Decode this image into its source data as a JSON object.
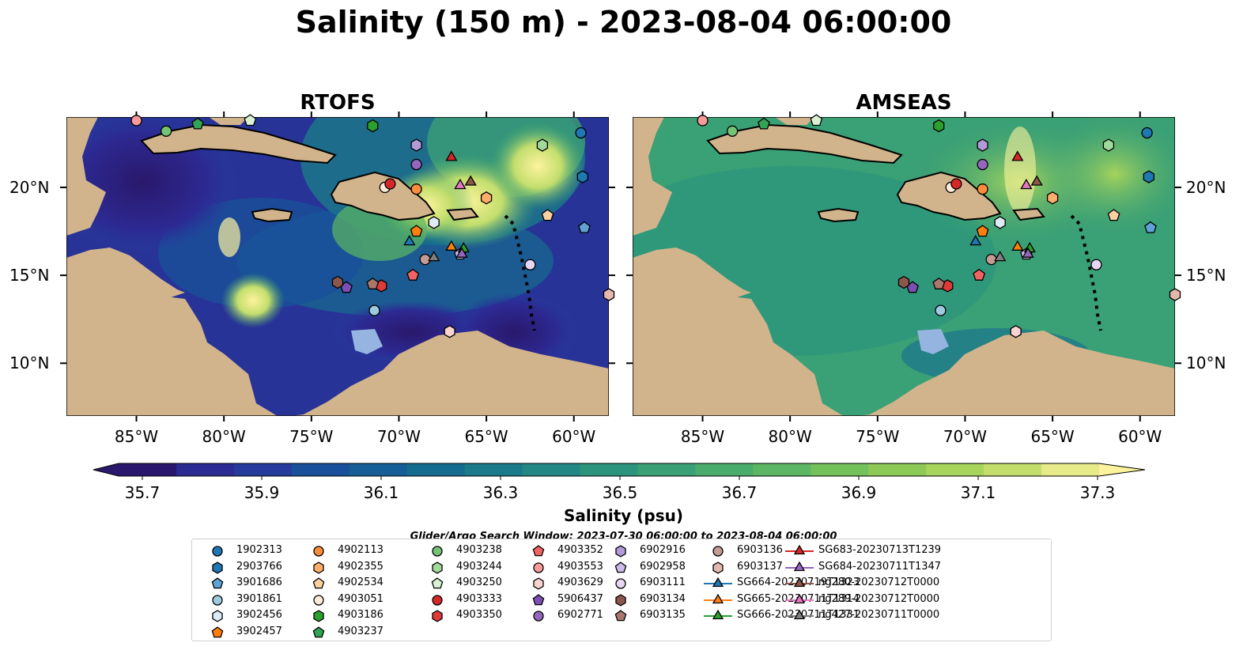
{
  "title": "Salinity (150 m) - 2023-08-04 06:00:00",
  "panels": [
    {
      "name": "RTOFS"
    },
    {
      "name": "AMSEAS"
    }
  ],
  "axes": {
    "x_ticks": [
      "85°W",
      "80°W",
      "75°W",
      "70°W",
      "65°W",
      "60°W"
    ],
    "y_ticks": [
      "20°N",
      "15°N",
      "10°N"
    ]
  },
  "colorbar": {
    "label": "Salinity (psu)",
    "ticks": [
      "35.7",
      "35.9",
      "36.1",
      "36.3",
      "36.5",
      "36.7",
      "36.9",
      "37.1",
      "37.3"
    ],
    "colors": [
      "#2a186c",
      "#2c2a93",
      "#243b9b",
      "#19509a",
      "#165e95",
      "#166c8f",
      "#1b7a89",
      "#238783",
      "#2c947c",
      "#3aa075",
      "#4aac6c",
      "#5db663",
      "#74c05b",
      "#8dc956",
      "#a6d45c",
      "#c3de6d",
      "#e6ea88"
    ],
    "over_color": "#fdf39d"
  },
  "search_window": "Glider/Argo Search Window: 2023-07-30 06:00:00 to 2023-08-04 06:00:00",
  "legend": {
    "items": [
      {
        "label": "1902313",
        "marker": "circle",
        "color": "#1f77b4"
      },
      {
        "label": "2903766",
        "marker": "hexagon",
        "color": "#1f77b4"
      },
      {
        "label": "3901686",
        "marker": "pentagon",
        "color": "#5fa2d5"
      },
      {
        "label": "3901861",
        "marker": "circle",
        "color": "#9ecae1"
      },
      {
        "label": "3902456",
        "marker": "hexagon",
        "color": "#deebf7"
      },
      {
        "label": "3902457",
        "marker": "pentagon",
        "color": "#ff7f0e"
      },
      {
        "label": "4902113",
        "marker": "circle",
        "color": "#fd8d3c"
      },
      {
        "label": "4902355",
        "marker": "hexagon",
        "color": "#fdae6b"
      },
      {
        "label": "4902534",
        "marker": "pentagon",
        "color": "#fdd0a2"
      },
      {
        "label": "4903051",
        "marker": "circle",
        "color": "#feecd8"
      },
      {
        "label": "4903186",
        "marker": "hexagon",
        "color": "#2ca02c"
      },
      {
        "label": "4903237",
        "marker": "pentagon",
        "color": "#31a354"
      },
      {
        "label": "4903238",
        "marker": "circle",
        "color": "#74c476"
      },
      {
        "label": "4903244",
        "marker": "hexagon",
        "color": "#a1d99b"
      },
      {
        "label": "4903250",
        "marker": "pentagon",
        "color": "#d9f0d3"
      },
      {
        "label": "4903333",
        "marker": "circle",
        "color": "#d62728"
      },
      {
        "label": "4903350",
        "marker": "hexagon",
        "color": "#de3a3a"
      },
      {
        "label": "4903352",
        "marker": "pentagon",
        "color": "#f26464"
      },
      {
        "label": "4903553",
        "marker": "circle",
        "color": "#fc9a9a"
      },
      {
        "label": "4903629",
        "marker": "hexagon",
        "color": "#fcd3d3"
      },
      {
        "label": "5906437",
        "marker": "pentagon",
        "color": "#7b4fb4"
      },
      {
        "label": "6902771",
        "marker": "circle",
        "color": "#9467bd"
      },
      {
        "label": "6902916",
        "marker": "hexagon",
        "color": "#b39ad8"
      },
      {
        "label": "6902958",
        "marker": "pentagon",
        "color": "#cdb9ea"
      },
      {
        "label": "6903111",
        "marker": "circle",
        "color": "#e8d6f7"
      },
      {
        "label": "6903134",
        "marker": "hexagon",
        "color": "#8c564b"
      },
      {
        "label": "6903135",
        "marker": "pentagon",
        "color": "#a9786b"
      },
      {
        "label": "6903136",
        "marker": "circle",
        "color": "#c49c94"
      },
      {
        "label": "6903137",
        "marker": "hexagon",
        "color": "#e5b8ad"
      },
      {
        "label": "SG664-20230719T1323",
        "marker": "triangle-line",
        "color": "#1f77b4"
      },
      {
        "label": "SG665-20230711T1314",
        "marker": "triangle-line",
        "color": "#ff7f0e"
      },
      {
        "label": "SG666-20230711T1331",
        "marker": "triangle-line",
        "color": "#2ca02c"
      },
      {
        "label": "SG683-20230713T1239",
        "marker": "triangle-line",
        "color": "#d62728"
      },
      {
        "label": "SG684-20230711T1347",
        "marker": "triangle-line",
        "color": "#9467bd"
      },
      {
        "label": "ng280-20230712T0000",
        "marker": "triangle-line",
        "color": "#8c564b"
      },
      {
        "label": "ng289-20230712T0000",
        "marker": "triangle-line",
        "color": "#e377c2"
      },
      {
        "label": "ng427-20230711T0000",
        "marker": "triangle-line",
        "color": "#7f7f7f"
      }
    ]
  },
  "map": {
    "lon_range": [
      -89,
      -58
    ],
    "lat_range": [
      7,
      24
    ],
    "ocean_color": "#95b4e0",
    "land_color": "#d2b48c",
    "observations": [
      {
        "id": "1902313",
        "lon": -59.6,
        "lat": 23.1
      },
      {
        "id": "2903766",
        "lon": -59.5,
        "lat": 20.6
      },
      {
        "id": "3901686",
        "lon": -59.4,
        "lat": 17.7
      },
      {
        "id": "3901861",
        "lon": -71.4,
        "lat": 13.0
      },
      {
        "id": "3902456",
        "lon": -68.0,
        "lat": 18.0
      },
      {
        "id": "3902457",
        "lon": -69.0,
        "lat": 17.5
      },
      {
        "id": "4902113",
        "lon": -69.0,
        "lat": 19.9
      },
      {
        "id": "4902355",
        "lon": -65.0,
        "lat": 19.4
      },
      {
        "id": "4902534",
        "lon": -61.5,
        "lat": 18.4
      },
      {
        "id": "4903051",
        "lon": -70.8,
        "lat": 20.0
      },
      {
        "id": "4903186",
        "lon": -71.5,
        "lat": 23.5
      },
      {
        "id": "4903237",
        "lon": -81.5,
        "lat": 23.6
      },
      {
        "id": "4903238",
        "lon": -83.3,
        "lat": 23.2
      },
      {
        "id": "4903244",
        "lon": -61.8,
        "lat": 22.4
      },
      {
        "id": "4903250",
        "lon": -78.5,
        "lat": 23.8
      },
      {
        "id": "4903333",
        "lon": -70.5,
        "lat": 20.2
      },
      {
        "id": "4903350",
        "lon": -71.0,
        "lat": 14.4
      },
      {
        "id": "4903352",
        "lon": -69.2,
        "lat": 15.0
      },
      {
        "id": "4903553",
        "lon": -85.0,
        "lat": 23.8
      },
      {
        "id": "4903629",
        "lon": -67.1,
        "lat": 11.8
      },
      {
        "id": "5906437",
        "lon": -73.0,
        "lat": 14.3
      },
      {
        "id": "6902771",
        "lon": -69.0,
        "lat": 21.3
      },
      {
        "id": "6902916",
        "lon": -69.0,
        "lat": 22.4
      },
      {
        "id": "6902958",
        "lon": -66.5,
        "lat": 16.2
      },
      {
        "id": "6903111",
        "lon": -62.5,
        "lat": 15.6
      },
      {
        "id": "6903134",
        "lon": -73.5,
        "lat": 14.6
      },
      {
        "id": "6903135",
        "lon": -71.5,
        "lat": 14.5
      },
      {
        "id": "6903136",
        "lon": -68.5,
        "lat": 15.9
      },
      {
        "id": "6903137",
        "lon": -58.0,
        "lat": 13.9
      },
      {
        "id": "SG664-20230719T1323",
        "lon": -69.4,
        "lat": 16.9
      },
      {
        "id": "SG665-20230711T1314",
        "lon": -67.0,
        "lat": 16.6
      },
      {
        "id": "SG666-20230711T1331",
        "lon": -66.3,
        "lat": 16.5
      },
      {
        "id": "SG683-20230713T1239",
        "lon": -67.0,
        "lat": 21.7
      },
      {
        "id": "SG684-20230711T1347",
        "lon": -66.4,
        "lat": 16.2
      },
      {
        "id": "ng280-20230712T0000",
        "lon": -65.9,
        "lat": 20.3
      },
      {
        "id": "ng289-20230712T0000",
        "lon": -66.5,
        "lat": 20.1
      },
      {
        "id": "ng427-20230711T0000",
        "lon": -68.0,
        "lat": 16.0
      }
    ]
  }
}
